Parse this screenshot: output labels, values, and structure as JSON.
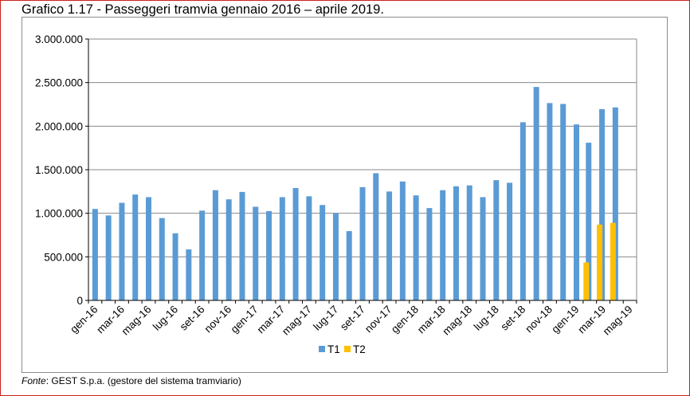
{
  "figure": {
    "title": "Grafico 1.17 - Passeggeri tramvia gennaio 2016 – aprile 2019.",
    "source_label": "Fonte",
    "source_text": ": GEST S.p.a. (gestore del sistema tramviario)"
  },
  "colors": {
    "frame": "#c9211e",
    "plot_border": "#8c8c8c",
    "gridline": "#888888",
    "T1": "#5b9bd5",
    "T2": "#ffc000"
  },
  "chart_data": {
    "type": "bar",
    "title": "",
    "xlabel": "",
    "ylabel": "",
    "ylim": [
      0,
      3000000
    ],
    "y_ticks": [
      0,
      500000,
      1000000,
      1500000,
      2000000,
      2500000,
      3000000
    ],
    "y_tick_labels": [
      "0",
      "500.000",
      "1.000.000",
      "1.500.000",
      "2.000.000",
      "2.500.000",
      "3.000.000"
    ],
    "grid": true,
    "legend_position": "bottom",
    "categories": [
      "gen-16",
      "feb-16",
      "mar-16",
      "apr-16",
      "mag-16",
      "giu-16",
      "lug-16",
      "ago-16",
      "set-16",
      "ott-16",
      "nov-16",
      "dic-16",
      "gen-17",
      "feb-17",
      "mar-17",
      "apr-17",
      "mag-17",
      "giu-17",
      "lug-17",
      "ago-17",
      "set-17",
      "ott-17",
      "nov-17",
      "dic-17",
      "gen-18",
      "feb-18",
      "mar-18",
      "apr-18",
      "mag-18",
      "giu-18",
      "lug-18",
      "ago-18",
      "set-18",
      "ott-18",
      "nov-18",
      "dic-18",
      "gen-19",
      "feb-19",
      "mar-19",
      "apr-19",
      "mag-19"
    ],
    "x_tick_labels": [
      "gen-16",
      "mar-16",
      "mag-16",
      "lug-16",
      "set-16",
      "nov-16",
      "gen-17",
      "mar-17",
      "mag-17",
      "lug-17",
      "set-17",
      "nov-17",
      "gen-18",
      "mar-18",
      "mag-18",
      "lug-18",
      "set-18",
      "nov-18",
      "gen-19",
      "mar-19",
      "mag-19"
    ],
    "series": [
      {
        "name": "T1",
        "color": "#5b9bd5",
        "values": [
          1050000,
          975000,
          1120000,
          1215000,
          1185000,
          945000,
          770000,
          585000,
          1030000,
          1265000,
          1160000,
          1245000,
          1075000,
          1025000,
          1185000,
          1290000,
          1195000,
          1095000,
          1000000,
          795000,
          1300000,
          1460000,
          1250000,
          1365000,
          1205000,
          1060000,
          1265000,
          1310000,
          1320000,
          1185000,
          1380000,
          1350000,
          2045000,
          2450000,
          2265000,
          2255000,
          2020000,
          1810000,
          2195000,
          2215000,
          null
        ]
      },
      {
        "name": "T2",
        "color": "#ffc000",
        "values": [
          null,
          null,
          null,
          null,
          null,
          null,
          null,
          null,
          null,
          null,
          null,
          null,
          null,
          null,
          null,
          null,
          null,
          null,
          null,
          null,
          null,
          null,
          null,
          null,
          null,
          null,
          null,
          null,
          null,
          null,
          null,
          null,
          null,
          null,
          null,
          null,
          null,
          435000,
          870000,
          890000,
          null
        ]
      }
    ]
  }
}
